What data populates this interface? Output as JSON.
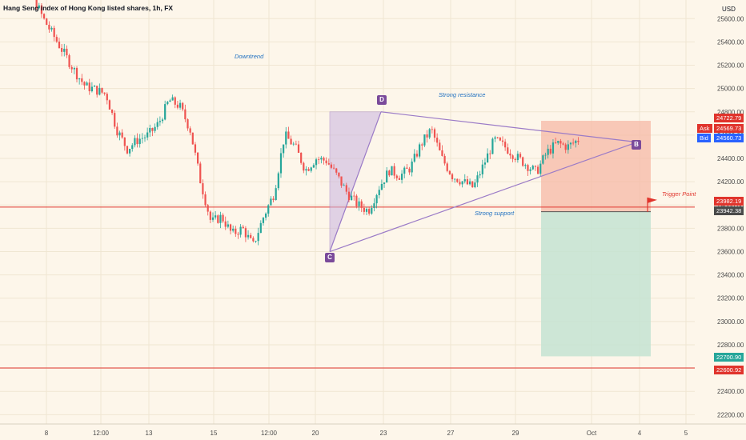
{
  "title": "Hang Seng index of Hong Kong listed shares, 1h, FX",
  "currency": "USD",
  "annotations": {
    "downtrend": "Downtrend",
    "strong_resistance": "Strong resistance",
    "strong_support": "Strong support",
    "trigger_point": "Trigger Point"
  },
  "points": {
    "B": "B",
    "C": "C",
    "D": "D"
  },
  "price_tags": {
    "upper_box": "24722.79",
    "ask_label": "Ask",
    "ask_value": "24569.73",
    "bid_label": "Bid",
    "bid_value": "24560.73",
    "trigger_line": "23982.19",
    "entry": "23942.38",
    "target": "22700.90",
    "lower_line": "22600.92"
  },
  "colors": {
    "up": "#26a69a",
    "down": "#ef5350",
    "pattern_line": "#9b7bc7",
    "stop_box": "#f6b8a6",
    "target_box": "#c4e3d2",
    "red_line": "#e0342c"
  },
  "chart_data": {
    "type": "candlestick",
    "title": "Hang Seng index of Hong Kong listed shares, 1h, FX",
    "y_ticks": [
      22200,
      22400,
      22600,
      22800,
      23000,
      23200,
      23400,
      23600,
      23800,
      24000,
      24200,
      24400,
      24600,
      24800,
      25000,
      25200,
      25400,
      25600
    ],
    "ylim": [
      22120,
      25760
    ],
    "x_ticks": [
      "8",
      "12:00",
      "13",
      "15",
      "12:00",
      "20",
      "23",
      "27",
      "29",
      "Oct",
      "4",
      "5"
    ],
    "pattern": {
      "type": "triangle",
      "points": {
        "D": 24800,
        "C": 23600,
        "B": 24540
      }
    },
    "horizontal_lines": [
      23982.19,
      22600.92
    ],
    "position": {
      "entry": 23942.38,
      "stop": 24722.79,
      "target": 22700.9
    },
    "price_path": [
      25900,
      25850,
      25880,
      25800,
      25600,
      25450,
      25300,
      25150,
      25020,
      24990,
      24950,
      24650,
      24480,
      24560,
      24600,
      24700,
      24900,
      24850,
      24650,
      24200,
      23850,
      23900,
      23750,
      23800,
      23650,
      23900,
      24100,
      24600,
      24500,
      24300,
      24400,
      24380,
      24250,
      24100,
      24000,
      23950,
      24150,
      24300,
      24250,
      24320,
      24520,
      24650,
      24400,
      24250,
      24200,
      24150,
      24350,
      24560,
      24500,
      24420,
      24350,
      24280,
      24450,
      24530,
      24500,
      24560
    ]
  }
}
